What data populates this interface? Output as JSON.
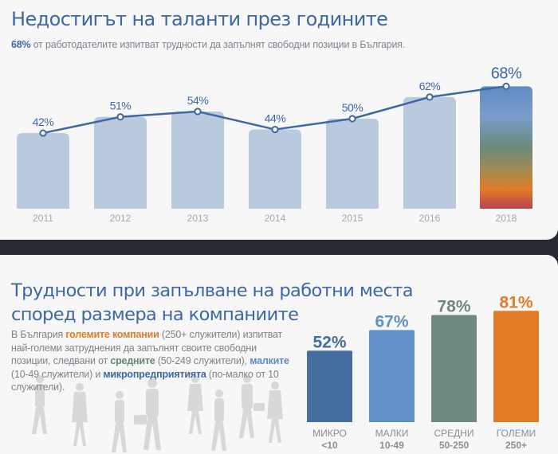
{
  "section1": {
    "title": "Недостигът на таланти през годините",
    "subtitle_highlight": "68%",
    "subtitle_rest": " от работодателите изпитват трудности да запълнят свободни позиции в България."
  },
  "section2": {
    "title_line1": "Трудности при запълване на работни места",
    "title_line2": "според размера на компаниите",
    "paragraph": [
      {
        "text": "В България ",
        "style": "normal"
      },
      {
        "text": "големите компании",
        "style": "orange"
      },
      {
        "text": " (250+ служители) изпитват най-големи затруднения да запълнят своите свободни позиции, следвани от ",
        "style": "normal"
      },
      {
        "text": "средните",
        "style": "green"
      },
      {
        "text": " (50-249 служители), ",
        "style": "normal"
      },
      {
        "text": "малките",
        "style": "lblue"
      },
      {
        "text": " (10-49 служители) и ",
        "style": "normal"
      },
      {
        "text": "микропредприятията",
        "style": "dblue"
      },
      {
        "text": " (по-малко от 10 служители).",
        "style": "normal"
      }
    ]
  },
  "colors": {
    "title": "#3d68a3",
    "bar_light": "#b9c9de",
    "line": "#3d68a3",
    "highlight_gradient": [
      "#5f8bc4",
      "#7b9dcb",
      "#6b8a78",
      "#a88a50",
      "#e27b26",
      "#b8444f"
    ]
  },
  "chart_data": [
    {
      "type": "bar",
      "overlay": "line",
      "title": "Недостигът на таланти през годините",
      "categories": [
        "2011",
        "2012",
        "2013",
        "2014",
        "2015",
        "2016",
        "2018"
      ],
      "values": [
        42,
        51,
        54,
        44,
        50,
        62,
        68
      ],
      "labels": [
        "42%",
        "51%",
        "54%",
        "44%",
        "50%",
        "62%",
        "68%"
      ],
      "highlight_index": 6,
      "ylim": [
        0,
        100
      ],
      "unit": "%",
      "grid": false
    },
    {
      "type": "bar",
      "title": "Трудности при запълване на работни места според размера на компаниите",
      "categories": [
        "МИКРО",
        "МАЛКИ",
        "СРЕДНИ",
        "ГОЛЕМИ"
      ],
      "sublabels": [
        "<10",
        "10-49",
        "50-250",
        "250+"
      ],
      "values": [
        52,
        67,
        78,
        81
      ],
      "labels": [
        "52%",
        "67%",
        "78%",
        "81%"
      ],
      "colors": [
        "#456d9f",
        "#6090c5",
        "#6d8a7e",
        "#e27b26"
      ],
      "ylim": [
        0,
        100
      ],
      "unit": "%",
      "grid": false
    }
  ]
}
